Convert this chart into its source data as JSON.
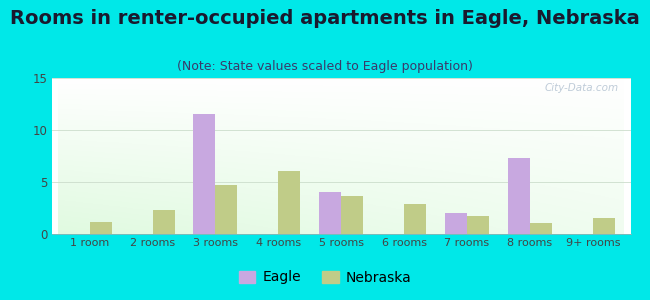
{
  "title": "Rooms in renter-occupied apartments in Eagle, Nebraska",
  "subtitle": "(Note: State values scaled to Eagle population)",
  "categories": [
    "1 room",
    "2 rooms",
    "3 rooms",
    "4 rooms",
    "5 rooms",
    "6 rooms",
    "7 rooms",
    "8 rooms",
    "9+ rooms"
  ],
  "eagle_values": [
    0,
    0,
    11.5,
    0,
    4.0,
    0,
    2.0,
    7.3,
    0
  ],
  "nebraska_values": [
    1.2,
    2.3,
    4.7,
    6.1,
    3.7,
    2.9,
    1.7,
    1.1,
    1.5
  ],
  "eagle_color": "#c8a8e0",
  "nebraska_color": "#c0cc88",
  "background_outer": "#00e8e8",
  "ylim": [
    0,
    15
  ],
  "yticks": [
    0,
    5,
    10,
    15
  ],
  "bar_width": 0.35,
  "title_fontsize": 14,
  "subtitle_fontsize": 9,
  "watermark": "City-Data.com",
  "legend_eagle": "Eagle",
  "legend_nebraska": "Nebraska",
  "title_color": "#1a1a2e",
  "subtitle_color": "#3a3a6a",
  "tick_color": "#444444"
}
